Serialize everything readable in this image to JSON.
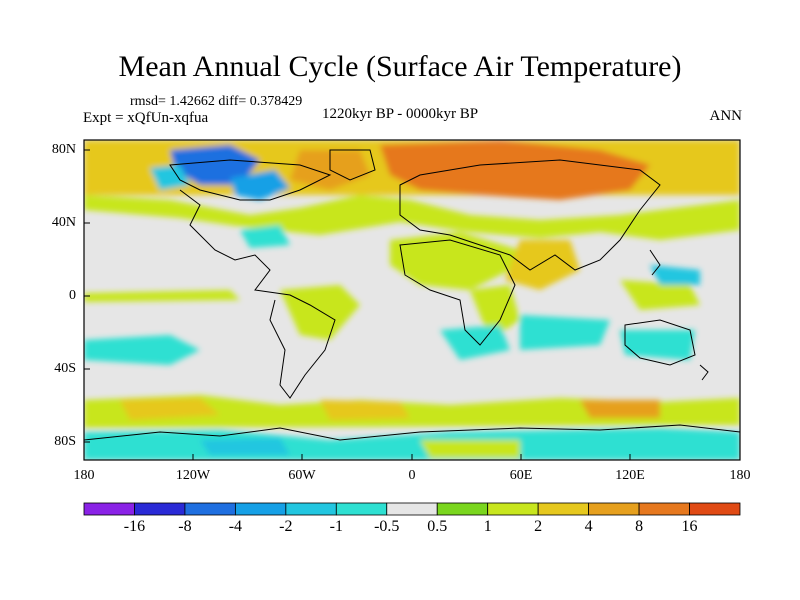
{
  "title": "Mean Annual Cycle (Surface Air Temperature)",
  "stats": "rmsd= 1.42662 diff= 0.378429",
  "experiment": "Expt = xQfUn-xqfua",
  "period": "1220kyr BP - 0000kyr BP",
  "season": "ANN",
  "lat_labels": [
    "80N",
    "40N",
    "0",
    "40S",
    "80S"
  ],
  "lon_labels": [
    "180",
    "120W",
    "60W",
    "0",
    "60E",
    "120E",
    "180"
  ],
  "colorbar": {
    "labels": [
      "-16",
      "-8",
      "-4",
      "-2",
      "-1",
      "-0.5",
      "0.5",
      "1",
      "2",
      "4",
      "8",
      "16"
    ],
    "colors": [
      "#8a22e6",
      "#2a2ad6",
      "#1f6fe0",
      "#16a0e6",
      "#22c6e0",
      "#2ee0d2",
      "#e6e6e6",
      "#7ad61e",
      "#c8e61e",
      "#e6c81e",
      "#e6a01e",
      "#e6781e",
      "#e04a14"
    ]
  },
  "colors": {
    "land_outline": "#000000",
    "frame": "#000000",
    "ocean_bg": "#e6e6e6"
  }
}
